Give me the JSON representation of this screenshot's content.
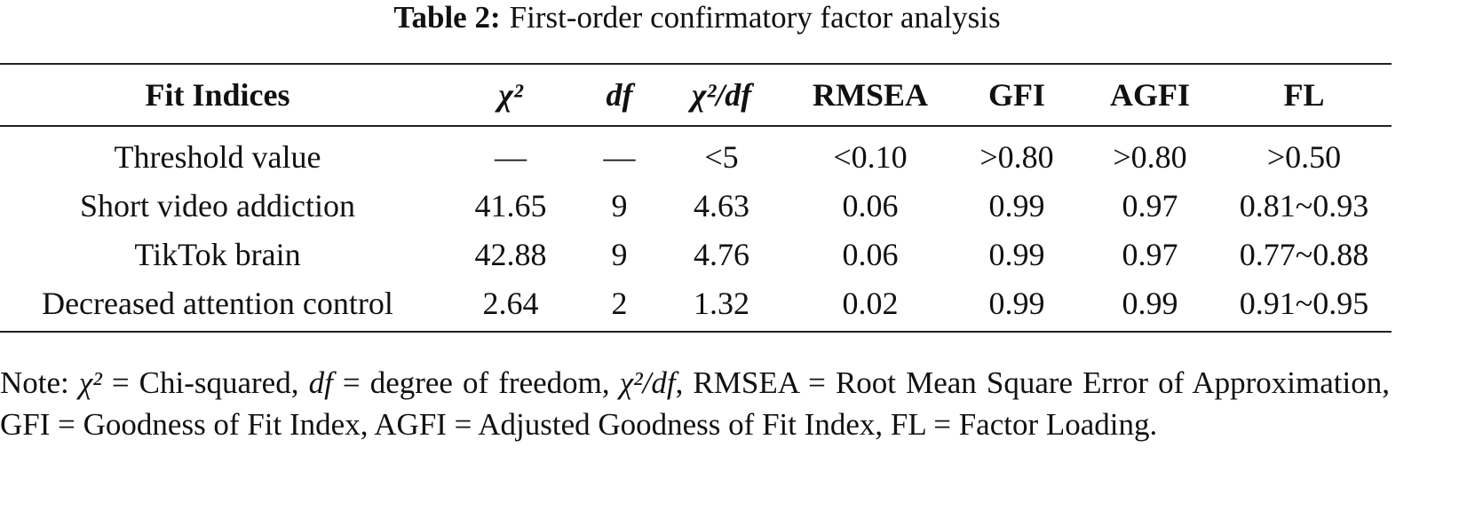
{
  "caption": {
    "label": "Table 2:",
    "text": "First-order confirmatory factor analysis"
  },
  "table": {
    "header": [
      "Fit Indices",
      "χ²",
      "df",
      "χ²/df",
      "RMSEA",
      "GFI",
      "AGFI",
      "FL"
    ],
    "header_italic": [
      false,
      true,
      true,
      true,
      false,
      false,
      false,
      false
    ],
    "rows": [
      [
        "Threshold value",
        "—",
        "—",
        "<5",
        "<0.10",
        ">0.80",
        ">0.80",
        ">0.50"
      ],
      [
        "Short video addiction",
        "41.65",
        "9",
        "4.63",
        "0.06",
        "0.99",
        "0.97",
        "0.81~0.93"
      ],
      [
        "TikTok brain",
        "42.88",
        "9",
        "4.76",
        "0.06",
        "0.99",
        "0.97",
        "0.77~0.88"
      ],
      [
        "Decreased attention control",
        "2.64",
        "2",
        "1.32",
        "0.02",
        "0.99",
        "0.99",
        "0.91~0.95"
      ]
    ]
  },
  "note": [
    {
      "text": "Note: "
    },
    {
      "text": "χ²",
      "italic": true
    },
    {
      "text": " = Chi-squared, "
    },
    {
      "text": "df",
      "italic": true
    },
    {
      "text": " = degree of freedom, "
    },
    {
      "text": "χ²/df",
      "italic": true
    },
    {
      "text": ", RMSEA = Root Mean Square Error of Approximation, GFI = Goodness of Fit Index, AGFI = Adjusted Goodness of Fit Index, FL = Factor Loading."
    }
  ]
}
